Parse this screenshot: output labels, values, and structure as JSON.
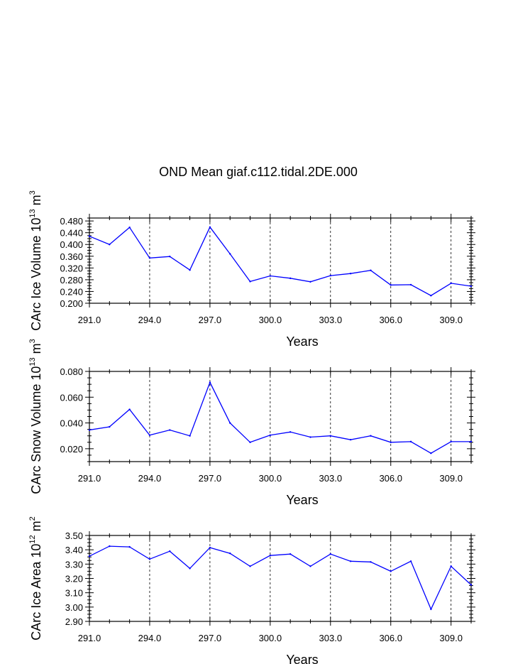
{
  "figure": {
    "title": "OND Mean giaf.c112.tidal.2DE.000"
  },
  "colors": {
    "series": "#0000ff",
    "axis": "#000000",
    "grid": "#000000"
  },
  "chart_data": [
    {
      "type": "line",
      "id": "ice-volume",
      "xlabel": "Years",
      "ylabel_main": "CArc Ice Volume 10",
      "ylabel_exp1": "13",
      "ylabel_mid": " m",
      "ylabel_exp2": "3",
      "xlim": [
        291,
        310
      ],
      "ylim": [
        0.2,
        0.49
      ],
      "yticks": [
        "0.200",
        "0.240",
        "0.280",
        "0.320",
        "0.360",
        "0.400",
        "0.440",
        "0.480"
      ],
      "ytick_values": [
        0.2,
        0.24,
        0.28,
        0.32,
        0.36,
        0.4,
        0.44,
        0.48
      ],
      "xticks": [
        "291.0",
        "294.0",
        "297.0",
        "300.0",
        "303.0",
        "306.0",
        "309.0"
      ],
      "xtick_values": [
        291,
        294,
        297,
        300,
        303,
        306,
        309
      ],
      "grid": "vertical dashed at labelled x ticks",
      "x": [
        291,
        292,
        293,
        294,
        295,
        296,
        297,
        298,
        299,
        300,
        301,
        302,
        303,
        304,
        305,
        306,
        307,
        308,
        309,
        310
      ],
      "y": [
        0.428,
        0.4,
        0.458,
        0.354,
        0.359,
        0.313,
        0.459,
        0.368,
        0.274,
        0.293,
        0.285,
        0.273,
        0.294,
        0.301,
        0.312,
        0.262,
        0.263,
        0.226,
        0.268,
        0.258
      ]
    },
    {
      "type": "line",
      "id": "snow-volume",
      "xlabel": "Years",
      "ylabel_main": "CArc Snow Volume 10",
      "ylabel_exp1": "13",
      "ylabel_mid": " m",
      "ylabel_exp2": "3",
      "xlim": [
        291,
        310
      ],
      "ylim": [
        0.01,
        0.08
      ],
      "yticks": [
        "0.020",
        "0.040",
        "0.060",
        "0.080"
      ],
      "ytick_values": [
        0.02,
        0.04,
        0.06,
        0.08
      ],
      "xticks": [
        "291.0",
        "294.0",
        "297.0",
        "300.0",
        "303.0",
        "306.0",
        "309.0"
      ],
      "xtick_values": [
        291,
        294,
        297,
        300,
        303,
        306,
        309
      ],
      "grid": "vertical dashed at labelled x ticks",
      "x": [
        291,
        292,
        293,
        294,
        295,
        296,
        297,
        298,
        299,
        300,
        301,
        302,
        303,
        304,
        305,
        306,
        307,
        308,
        309,
        310
      ],
      "y": [
        0.0345,
        0.037,
        0.0505,
        0.0305,
        0.0345,
        0.03,
        0.0715,
        0.04,
        0.025,
        0.0305,
        0.033,
        0.029,
        0.03,
        0.027,
        0.03,
        0.025,
        0.0255,
        0.0165,
        0.0255,
        0.0255
      ]
    },
    {
      "type": "line",
      "id": "ice-area",
      "xlabel": "Years",
      "ylabel_main": "CArc Ice Area 10",
      "ylabel_exp1": "12",
      "ylabel_mid": " m",
      "ylabel_exp2": "2",
      "xlim": [
        291,
        310
      ],
      "ylim": [
        2.9,
        3.5
      ],
      "yticks": [
        "2.90",
        "3.00",
        "3.10",
        "3.20",
        "3.30",
        "3.40",
        "3.50"
      ],
      "ytick_values": [
        2.9,
        3.0,
        3.1,
        3.2,
        3.3,
        3.4,
        3.5
      ],
      "xticks": [
        "291.0",
        "294.0",
        "297.0",
        "300.0",
        "303.0",
        "306.0",
        "309.0"
      ],
      "xtick_values": [
        291,
        294,
        297,
        300,
        303,
        306,
        309
      ],
      "grid": "vertical dashed at labelled x ticks",
      "x": [
        291,
        292,
        293,
        294,
        295,
        296,
        297,
        298,
        299,
        300,
        301,
        302,
        303,
        304,
        305,
        306,
        307,
        308,
        309,
        310
      ],
      "y": [
        3.355,
        3.425,
        3.42,
        3.335,
        3.39,
        3.27,
        3.415,
        3.375,
        3.285,
        3.36,
        3.37,
        3.285,
        3.37,
        3.32,
        3.315,
        3.25,
        3.32,
        2.985,
        3.285,
        3.155
      ]
    }
  ]
}
